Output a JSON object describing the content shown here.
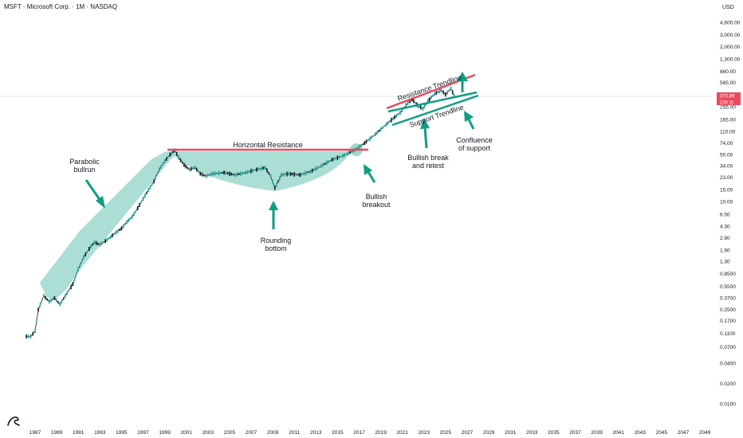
{
  "header": {
    "title": "MSFT · Microsoft Corp. · 1M · NASDAQ",
    "currency": "USD"
  },
  "price_tags": {
    "last": "370.89",
    "second": "230 (l)"
  },
  "annotations": {
    "parabolic": [
      "Parabolic",
      "bullrun"
    ],
    "horizontal_resistance": "Horizontal Resistance",
    "rounding_bottom": [
      "Rounding",
      "bottom"
    ],
    "bullish_breakout": [
      "Bullish",
      "breakout"
    ],
    "resistance_trendline": "Resistance Trendline",
    "support_trendline": "Support Trendline",
    "bullish_break": [
      "Bullish break",
      "and retest"
    ],
    "confluence": [
      "Confluence",
      "of support"
    ]
  },
  "colors": {
    "candle_up": "#26a69a",
    "candle_down": "#131722",
    "resistance": "#e84a5f",
    "support": "#129e83",
    "fill": "#8fd3c6",
    "arrow": "#0f9e83"
  },
  "chart_data": {
    "type": "line",
    "title": "MSFT · Microsoft Corp. · 1M · NASDAQ",
    "scale": "log",
    "y_ticks": [
      "4,600.00",
      "3,000.00",
      "2,000.00",
      "1,300.00",
      "860.00",
      "585.00",
      "255.00",
      "165.00",
      "110.00",
      "74.00",
      "50.00",
      "34.00",
      "23.00",
      "15.00",
      "10.00",
      "6.50",
      "4.30",
      "2.90",
      "1.90",
      "1.30",
      "0.8500",
      "0.5500",
      "0.3700",
      "0.2500",
      "0.1700",
      "0.1100",
      "0.0700",
      "0.0400",
      "0.0200",
      "0.0100"
    ],
    "x_ticks": [
      "1987",
      "1989",
      "1991",
      "1993",
      "1995",
      "1997",
      "1999",
      "2001",
      "2003",
      "2005",
      "2007",
      "2009",
      "2011",
      "2013",
      "2015",
      "2017",
      "2019",
      "2021",
      "2023",
      "2025",
      "2027",
      "2029",
      "2031",
      "2033",
      "2035",
      "2037",
      "2039",
      "2041",
      "2043",
      "2045",
      "2047",
      "2049"
    ],
    "x": [
      1986.2,
      1986.6,
      1987.0,
      1987.3,
      1987.8,
      1988.3,
      1988.8,
      1989.3,
      1989.8,
      1990.5,
      1991.0,
      1991.5,
      1992.0,
      1992.5,
      1993.0,
      1993.5,
      1994.0,
      1994.5,
      1995.0,
      1995.5,
      1996.0,
      1996.5,
      1997.0,
      1997.5,
      1998.0,
      1998.5,
      1999.0,
      1999.5,
      1999.95,
      2000.3,
      2000.8,
      2001.3,
      2001.8,
      2002.3,
      2002.8,
      2003.5,
      2004.5,
      2005.5,
      2006.5,
      2007.5,
      2008.3,
      2008.8,
      2009.2,
      2009.8,
      2010.5,
      2011.5,
      2012.5,
      2013.5,
      2014.5,
      2015.5,
      2016.5,
      2017.5,
      2018.5,
      2019.5,
      2020.3,
      2020.8,
      2021.5,
      2021.9,
      2022.5,
      2022.9,
      2023.5,
      2024.0,
      2024.6,
      2025.0,
      2025.5,
      2025.8
    ],
    "values": [
      0.1,
      0.1,
      0.12,
      0.25,
      0.4,
      0.33,
      0.37,
      0.3,
      0.4,
      0.6,
      1.0,
      1.5,
      2.0,
      2.5,
      2.3,
      2.6,
      3.0,
      3.5,
      4.0,
      5.0,
      6.0,
      8.0,
      11.0,
      15.0,
      20.0,
      30.0,
      40.0,
      50.0,
      58.0,
      45.0,
      35.0,
      30.0,
      32.0,
      26.0,
      24.0,
      26.0,
      27.0,
      25.0,
      27.0,
      30.0,
      32.0,
      24.0,
      16.0,
      25.0,
      26.0,
      25.0,
      28.0,
      34.0,
      42.0,
      48.0,
      57.0,
      74.0,
      100.0,
      140.0,
      180.0,
      210.0,
      290.0,
      330.0,
      260.0,
      240.0,
      330.0,
      400.0,
      450.0,
      390.0,
      480.0,
      370.89
    ]
  }
}
